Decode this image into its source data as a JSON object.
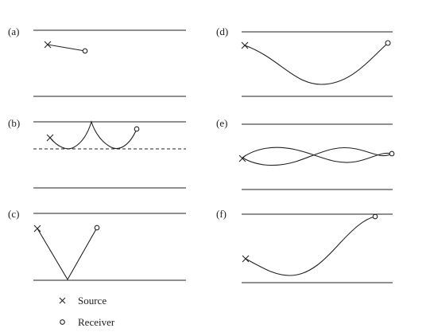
{
  "panels": [
    {
      "label": "(a)"
    },
    {
      "label": "(b)"
    },
    {
      "label": "(c)"
    },
    {
      "label": "(d)"
    },
    {
      "label": "(e)"
    },
    {
      "label": "(f)"
    }
  ],
  "legend": {
    "source_label": "Source",
    "receiver_label": "Receiver",
    "source_symbol": "×",
    "receiver_symbol": "o"
  }
}
